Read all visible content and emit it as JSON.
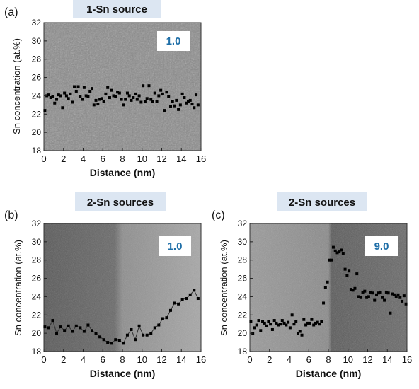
{
  "colors": {
    "title_bg": "#dce6f2",
    "badge_text": "#1f6fa8",
    "marker": "#000000",
    "line": "#333333"
  },
  "chart_data": [
    {
      "panel": "(a)",
      "title": "1-Sn source",
      "badge": "1.0",
      "type": "scatter",
      "xlabel": "Distance (nm)",
      "ylabel": "Sn concentration (at.%)",
      "xlim": [
        0,
        16
      ],
      "ylim": [
        18,
        32
      ],
      "xticks": [
        0,
        2,
        4,
        6,
        8,
        10,
        12,
        14,
        16
      ],
      "yticks": [
        18,
        20,
        22,
        24,
        26,
        28,
        30,
        32
      ],
      "background": "HAADF-STEM micrograph, uniform grey with fine lattice texture",
      "series": [
        {
          "style": "markers",
          "x": [
            0.1,
            0.3,
            0.5,
            0.7,
            0.9,
            1.1,
            1.3,
            1.5,
            1.7,
            1.9,
            2.1,
            2.3,
            2.5,
            2.7,
            2.9,
            3.1,
            3.3,
            3.5,
            3.7,
            3.9,
            4.1,
            4.3,
            4.5,
            4.7,
            4.9,
            5.1,
            5.3,
            5.5,
            5.7,
            5.9,
            6.1,
            6.3,
            6.5,
            6.7,
            6.9,
            7.1,
            7.3,
            7.5,
            7.7,
            7.9,
            8.1,
            8.3,
            8.5,
            8.7,
            8.9,
            9.1,
            9.3,
            9.5,
            9.7,
            9.9,
            10.1,
            10.3,
            10.5,
            10.7,
            10.9,
            11.1,
            11.3,
            11.5,
            11.7,
            11.9,
            12.1,
            12.3,
            12.5,
            12.7,
            12.9,
            13.1,
            13.3,
            13.5,
            13.7,
            13.9,
            14.1,
            14.3,
            14.5,
            14.7,
            14.9,
            15.1,
            15.3,
            15.5,
            15.7
          ],
          "y": [
            22.4,
            24.0,
            24.1,
            23.8,
            23.9,
            23.2,
            23.6,
            24.1,
            24.0,
            22.7,
            24.3,
            24.0,
            23.7,
            24.2,
            23.3,
            25.0,
            24.5,
            25.0,
            23.9,
            23.6,
            24.9,
            24.0,
            23.9,
            24.5,
            24.8,
            23.0,
            23.5,
            23.1,
            23.6,
            23.7,
            23.4,
            24.2,
            24.9,
            23.8,
            24.6,
            24.0,
            23.9,
            24.4,
            24.3,
            23.6,
            23.0,
            23.6,
            24.3,
            24.0,
            23.5,
            23.8,
            24.2,
            23.6,
            24.0,
            23.3,
            25.1,
            23.4,
            23.7,
            25.1,
            23.6,
            23.4,
            24.3,
            23.4,
            24.0,
            24.6,
            24.2,
            22.4,
            24.4,
            23.9,
            22.8,
            23.4,
            22.9,
            23.5,
            22.5,
            23.0,
            24.2,
            23.8,
            23.2,
            23.4,
            23.5,
            23.1,
            22.7,
            24.1,
            23.0
          ]
        }
      ]
    },
    {
      "panel": "(b)",
      "title": "2-Sn sources",
      "badge": "1.0",
      "type": "line",
      "xlabel": "Distance (nm)",
      "ylabel": "Sn concentration (at.%)",
      "xlim": [
        0,
        16
      ],
      "ylim": [
        18,
        32
      ],
      "xticks": [
        0,
        2,
        4,
        6,
        8,
        10,
        12,
        14,
        16
      ],
      "yticks": [
        18,
        20,
        22,
        24,
        26,
        28,
        30,
        32
      ],
      "background": "HAADF-STEM micrograph, dark left half, brighter right half",
      "series": [
        {
          "style": "markers+line",
          "x": [
            0.1,
            0.5,
            0.9,
            1.3,
            1.7,
            2.1,
            2.5,
            2.9,
            3.3,
            3.7,
            4.1,
            4.5,
            4.9,
            5.3,
            5.7,
            6.1,
            6.5,
            6.9,
            7.3,
            7.7,
            8.1,
            8.5,
            8.9,
            9.3,
            9.7,
            10.1,
            10.5,
            10.9,
            11.3,
            11.7,
            12.1,
            12.5,
            12.9,
            13.3,
            13.7,
            14.1,
            14.5,
            14.9,
            15.3,
            15.7
          ],
          "y": [
            20.7,
            20.6,
            21.4,
            20.0,
            20.7,
            20.3,
            20.8,
            20.2,
            20.8,
            20.6,
            20.2,
            20.9,
            20.3,
            20.0,
            19.6,
            19.3,
            19.0,
            18.9,
            19.3,
            19.2,
            18.9,
            19.8,
            20.4,
            19.3,
            20.8,
            19.8,
            19.8,
            20.0,
            20.6,
            20.9,
            21.6,
            21.7,
            22.5,
            23.3,
            23.2,
            23.7,
            23.8,
            24.2,
            24.7,
            23.8
          ]
        }
      ]
    },
    {
      "panel": "(c)",
      "title": "2-Sn sources",
      "badge": "9.0",
      "type": "scatter",
      "xlabel": "Distance (nm)",
      "ylabel": "Sn concentration (at.%)",
      "xlim": [
        0,
        16
      ],
      "ylim": [
        18,
        32
      ],
      "xticks": [
        0,
        2,
        4,
        6,
        8,
        10,
        12,
        14,
        16
      ],
      "yticks": [
        18,
        20,
        22,
        24,
        26,
        28,
        30,
        32
      ],
      "background": "HAADF-STEM micrograph, lighter textured left part, darker right part",
      "series": [
        {
          "style": "markers",
          "x": [
            0.1,
            0.3,
            0.5,
            0.7,
            0.9,
            1.1,
            1.3,
            1.5,
            1.7,
            1.9,
            2.1,
            2.3,
            2.5,
            2.7,
            2.9,
            3.1,
            3.3,
            3.5,
            3.7,
            3.9,
            4.1,
            4.3,
            4.5,
            4.7,
            4.9,
            5.1,
            5.3,
            5.5,
            5.7,
            5.9,
            6.1,
            6.3,
            6.5,
            6.7,
            6.9,
            7.1,
            7.3,
            7.5,
            7.7,
            7.9,
            8.1,
            8.3,
            8.5,
            8.7,
            8.9,
            9.1,
            9.3,
            9.5,
            9.7,
            9.9,
            10.1,
            10.3,
            10.5,
            10.7,
            10.9,
            11.1,
            11.3,
            11.5,
            11.7,
            11.9,
            12.1,
            12.3,
            12.5,
            12.7,
            12.9,
            13.1,
            13.3,
            13.5,
            13.7,
            13.9,
            14.1,
            14.3,
            14.5,
            14.7,
            14.9,
            15.1,
            15.3,
            15.5,
            15.7,
            15.9
          ],
          "y": [
            21.3,
            20.0,
            20.6,
            20.9,
            21.4,
            20.3,
            21.3,
            21.1,
            20.8,
            21.3,
            21.0,
            20.4,
            21.4,
            21.1,
            20.9,
            21.0,
            21.4,
            21.1,
            20.9,
            21.2,
            20.6,
            22.0,
            21.0,
            21.3,
            20.0,
            20.2,
            19.8,
            21.5,
            20.9,
            21.1,
            21.1,
            21.5,
            20.9,
            21.1,
            21.2,
            21.0,
            21.3,
            23.3,
            25.0,
            25.6,
            28.0,
            28.0,
            29.4,
            29.0,
            28.8,
            28.9,
            29.1,
            28.7,
            27.0,
            26.3,
            26.8,
            24.8,
            24.7,
            24.9,
            26.5,
            24.0,
            23.9,
            24.5,
            24.6,
            23.9,
            24.0,
            24.5,
            24.4,
            23.6,
            24.2,
            24.4,
            24.5,
            23.9,
            23.6,
            24.5,
            24.4,
            22.2,
            24.3,
            24.2,
            24.0,
            24.2,
            23.9,
            23.5,
            24.1,
            23.2
          ]
        }
      ]
    }
  ]
}
